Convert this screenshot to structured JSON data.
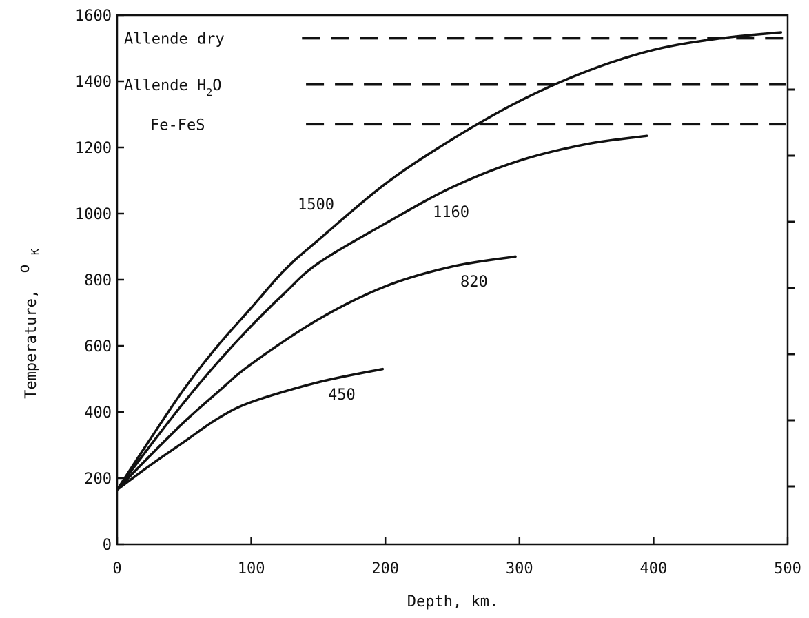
{
  "chart_data": {
    "type": "line",
    "xlabel": "Depth, km.",
    "ylabel_main": "Temperature,",
    "ylabel_unit_sup": "o",
    "ylabel_unit_sub": "K",
    "xlim": [
      0,
      500
    ],
    "ylim": [
      0,
      1600
    ],
    "x_ticks": [
      0,
      100,
      200,
      300,
      400,
      500
    ],
    "x_tick_labels": [
      "0",
      "100",
      "200",
      "300",
      "400",
      "500"
    ],
    "y_ticks": [
      0,
      200,
      400,
      600,
      800,
      1000,
      1200,
      1400,
      1600
    ],
    "y_tick_labels": [
      "0",
      "200",
      "400",
      "600",
      "800",
      "1000",
      "1200",
      "1400",
      "1600"
    ],
    "grid": false,
    "series": [
      {
        "name": "1500",
        "x": [
          0,
          25,
          50,
          75,
          100,
          125,
          150,
          200,
          250,
          300,
          350,
          400,
          450,
          495
        ],
        "y": [
          165,
          320,
          470,
          600,
          715,
          830,
          920,
          1090,
          1225,
          1340,
          1430,
          1495,
          1530,
          1548
        ]
      },
      {
        "name": "1160",
        "x": [
          0,
          25,
          50,
          75,
          100,
          125,
          150,
          200,
          250,
          300,
          350,
          395
        ],
        "y": [
          165,
          300,
          430,
          550,
          660,
          760,
          850,
          970,
          1080,
          1160,
          1210,
          1235
        ]
      },
      {
        "name": "820",
        "x": [
          0,
          25,
          50,
          75,
          100,
          150,
          200,
          250,
          297
        ],
        "y": [
          165,
          270,
          370,
          460,
          545,
          680,
          780,
          840,
          870
        ]
      },
      {
        "name": "450",
        "x": [
          0,
          25,
          50,
          75,
          100,
          150,
          198
        ],
        "y": [
          165,
          240,
          310,
          380,
          430,
          490,
          530
        ]
      }
    ],
    "reference_lines": [
      {
        "name": "Allende dry",
        "y": 1530,
        "x_start": 125,
        "x_end": 500
      },
      {
        "name": "Allende H2O",
        "label_main": "Allende H",
        "label_sub": "2",
        "label_tail": "O",
        "y": 1390,
        "x_start": 128,
        "x_end": 500
      },
      {
        "name": "Fe-FeS",
        "y": 1270,
        "x_start": 128,
        "x_end": 500
      }
    ]
  }
}
